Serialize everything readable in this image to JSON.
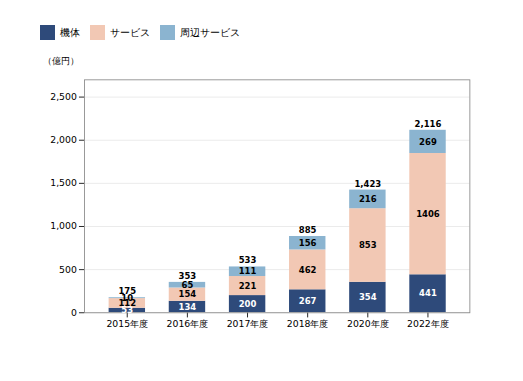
{
  "chart_data": {
    "type": "bar",
    "stacked": true,
    "categories": [
      "2015年度",
      "2016年度",
      "2017年度",
      "2018年度",
      "2020年度",
      "2022年度"
    ],
    "series": [
      {
        "name": "機体",
        "color": "#2E4A7A",
        "values": [
          53,
          134,
          200,
          267,
          354,
          441
        ]
      },
      {
        "name": "サービス",
        "color": "#F2C8B4",
        "values": [
          112,
          154,
          221,
          462,
          853,
          1406
        ]
      },
      {
        "name": "周辺サービス",
        "color": "#8BB4D0",
        "values": [
          10,
          65,
          111,
          156,
          216,
          269
        ]
      }
    ],
    "totals": [
      175,
      353,
      533,
      885,
      1423,
      2116
    ],
    "total_labels": [
      "175",
      "353",
      "533",
      "885",
      "1,423",
      "2,116"
    ],
    "ylabel": "（億円）",
    "ylim": [
      0,
      2700
    ],
    "yticks": [
      0,
      500,
      {
        "value": 1000,
        "label": "1,000"
      },
      {
        "value": 1500,
        "label": "1,500"
      },
      {
        "value": 2000,
        "label": "2,000"
      },
      {
        "value": 2500,
        "label": "2,500"
      }
    ],
    "grid": true,
    "legend": "top",
    "data_labels": true
  }
}
